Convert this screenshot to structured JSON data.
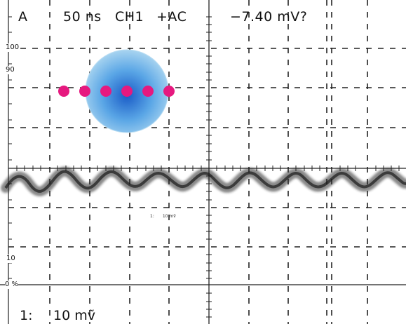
{
  "header": {
    "trigger_source": "A",
    "timebase": "50 ns",
    "channel": "CH1",
    "coupling": "+AC",
    "measurement": "−7.40 mV?"
  },
  "graticule_marks": {
    "pct_100": "100",
    "pct_90": "90",
    "pct_10": "10",
    "pct_0": "0 %"
  },
  "footer": {
    "channel": "1:",
    "scale": "10 mṽ"
  },
  "inner_label": {
    "channel": "1:",
    "scale": "10 mṽ"
  },
  "colors": {
    "trace": "#2a2a2a",
    "grid": "#222222",
    "cursor_markers": "#e6197f",
    "overlay_center": "#1a5cc7",
    "overlay_edge": "#a8d4f0"
  },
  "icons": {
    "overlay": "blue-circle-icon",
    "markers": "magenta-dot-icon"
  },
  "cursor_marker_count": 6
}
